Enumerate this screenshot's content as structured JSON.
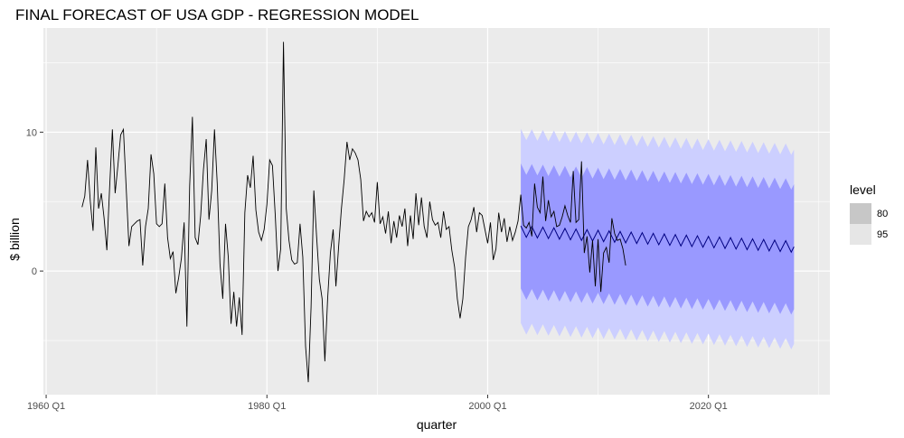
{
  "chart_data": {
    "type": "line",
    "title": "FINAL FORECAST OF USA GDP - REGRESSION MODEL",
    "xlabel": "quarter",
    "ylabel": "$ billion",
    "x_ticks": [
      1960,
      1980,
      2000,
      2020
    ],
    "x_tick_labels": [
      "1960 Q1",
      "1980 Q1",
      "2000 Q1",
      "2020 Q1"
    ],
    "y_ticks": [
      0,
      10
    ],
    "y_tick_labels": [
      "0",
      "10"
    ],
    "xlim": [
      1959.75,
      2031
    ],
    "ylim": [
      -8.9,
      17.5
    ],
    "grid": true,
    "legend": {
      "title": "level",
      "position": "right",
      "entries": [
        {
          "label": "80",
          "color": "#c7c7c7"
        },
        {
          "label": "95",
          "color": "#e6e6e6"
        }
      ]
    },
    "colors": {
      "panel": "#ebebeb",
      "grid": "#ffffff",
      "history_line": "#000000",
      "forecast_line": "#000080",
      "band80": "#9999ff",
      "band95": "#cccfff"
    },
    "history": {
      "start": 1963.25,
      "step": 0.25,
      "values": [
        4.6,
        5.4,
        8.0,
        5.0,
        2.9,
        8.9,
        4.5,
        5.6,
        3.8,
        1.5,
        6.0,
        10.2,
        5.6,
        7.6,
        9.8,
        10.2,
        6.0,
        1.8,
        3.2,
        3.4,
        3.6,
        3.7,
        0.4,
        3.2,
        4.5,
        8.4,
        7.0,
        3.4,
        3.2,
        3.4,
        6.3,
        2.4,
        0.9,
        1.4,
        -1.6,
        -0.5,
        0.9,
        3.5,
        -4.0,
        6.1,
        11.1,
        2.4,
        1.9,
        4.0,
        7.3,
        9.5,
        3.7,
        5.8,
        10.2,
        6.3,
        0.5,
        -2.0,
        3.4,
        1.0,
        -3.8,
        -1.5,
        -4.0,
        -1.9,
        -4.6,
        4.2,
        6.9,
        6.0,
        8.3,
        4.4,
        2.8,
        2.2,
        3.0,
        4.8,
        8.0,
        7.6,
        4.1,
        0.0,
        1.6,
        16.5,
        4.5,
        2.2,
        0.8,
        0.5,
        0.6,
        3.4,
        1.0,
        -5.4,
        -8.0,
        -2.6,
        5.8,
        2.5,
        -0.6,
        -2.0,
        -6.5,
        -2.0,
        1.3,
        3.0,
        -1.1,
        1.8,
        4.5,
        6.6,
        9.3,
        8.0,
        8.8,
        8.5,
        8.0,
        6.6,
        3.6,
        4.3,
        3.9,
        4.2,
        3.5,
        6.4,
        3.4,
        3.9,
        2.7,
        4.3,
        2.0,
        3.6,
        2.4,
        4.0,
        3.2,
        4.5,
        1.8,
        4.0,
        2.3,
        5.6,
        3.3,
        5.3,
        3.2,
        2.4,
        5.0,
        3.7,
        3.3,
        3.5,
        2.4,
        4.3,
        3.0,
        3.2,
        1.5,
        0.3,
        -2.0,
        -3.4,
        -2.0,
        1.0,
        3.2,
        3.7,
        4.6,
        2.8,
        4.2,
        4.0,
        3.0,
        2.0,
        3.5,
        0.8,
        1.6,
        4.2,
        2.8,
        3.8,
        2.1,
        3.2,
        2.2,
        2.8,
        3.6,
        5.5,
        3.3,
        3.1,
        3.5,
        2.5,
        6.3,
        4.6,
        4.2,
        6.8,
        3.6,
        5.1,
        3.9,
        4.3,
        3.2,
        3.3,
        3.9,
        4.7,
        4.0,
        3.5,
        7.2,
        3.5,
        3.7,
        7.9,
        1.3,
        2.5,
        -0.1,
        2.2,
        -1.1,
        2.3,
        -1.5,
        1.3,
        1.7,
        0.6,
        3.8,
        2.7,
        2.2,
        2.3,
        1.6,
        0.4
      ]
    },
    "forecast": {
      "start": 2003.0,
      "step": 0.25,
      "mean_start": 2.85,
      "mean_end": 1.75,
      "seasonal_amplitude": 0.4,
      "pi80_halfwidth": 4.5,
      "pi95_halfwidth": 7.0,
      "end": 2027.75
    }
  }
}
